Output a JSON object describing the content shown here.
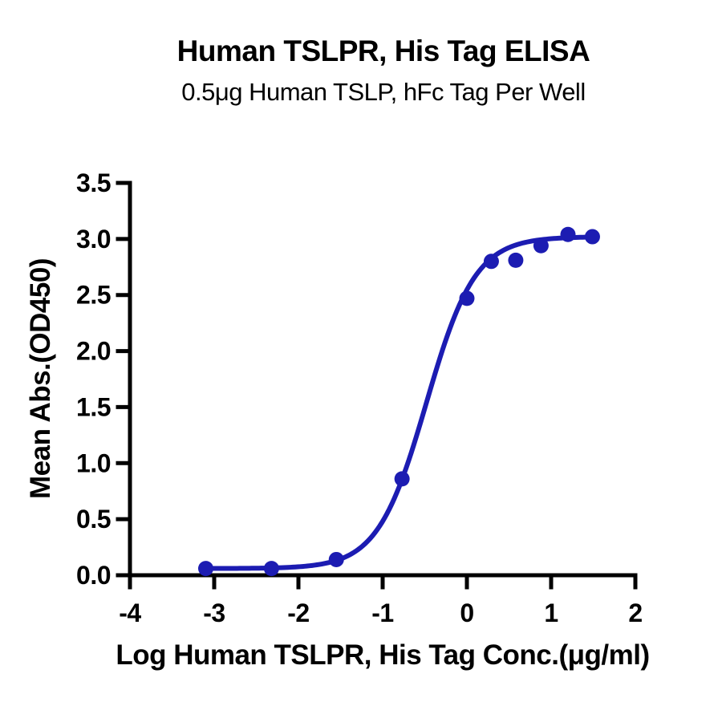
{
  "title": "Human TSLPR, His Tag ELISA",
  "subtitle": "0.5μg Human TSLP, hFc Tag Per Well",
  "chart_data": {
    "type": "scatter",
    "title": "Human TSLPR, His Tag ELISA",
    "subtitle": "0.5μg Human TSLP, hFc Tag Per Well",
    "xlabel": "Log Human TSLPR, His Tag Conc.(μg/ml)",
    "ylabel": "Mean Abs.(OD450)",
    "xlim": [
      -4,
      2
    ],
    "ylim": [
      0,
      3.5
    ],
    "xticks": [
      -4,
      -3,
      -2,
      -1,
      0,
      1,
      2
    ],
    "xtick_labels": [
      "-4",
      "-3",
      "-2",
      "-1",
      "0",
      "1",
      "2"
    ],
    "yticks": [
      0,
      0.5,
      1,
      1.5,
      2,
      2.5,
      3,
      3.5
    ],
    "ytick_labels": [
      "0.0",
      "0.5",
      "1.0",
      "1.5",
      "2.0",
      "2.5",
      "3.0",
      "3.5"
    ],
    "grid": false,
    "legend_position": "none",
    "colors": {
      "series": "#1c1cb2",
      "axis": "#000000",
      "background": "#ffffff"
    },
    "series": [
      {
        "name": "Human TSLPR, His Tag",
        "marker": "circle",
        "marker_color": "#1c1cb2",
        "line_color": "#1c1cb2",
        "points": [
          {
            "x": -3.1,
            "y": 0.06
          },
          {
            "x": -2.32,
            "y": 0.06
          },
          {
            "x": -1.55,
            "y": 0.14
          },
          {
            "x": -0.77,
            "y": 0.86
          },
          {
            "x": 0.0,
            "y": 2.47
          },
          {
            "x": 0.29,
            "y": 2.8
          },
          {
            "x": 0.58,
            "y": 2.81
          },
          {
            "x": 0.88,
            "y": 2.94
          },
          {
            "x": 1.2,
            "y": 3.04
          },
          {
            "x": 1.49,
            "y": 3.02
          }
        ],
        "fit_4pl": {
          "bottom": 0.06,
          "top": 3.02,
          "log_ec50": -0.48,
          "hill": 1.5,
          "x_start": -3.1,
          "x_end": 1.49
        }
      }
    ]
  }
}
